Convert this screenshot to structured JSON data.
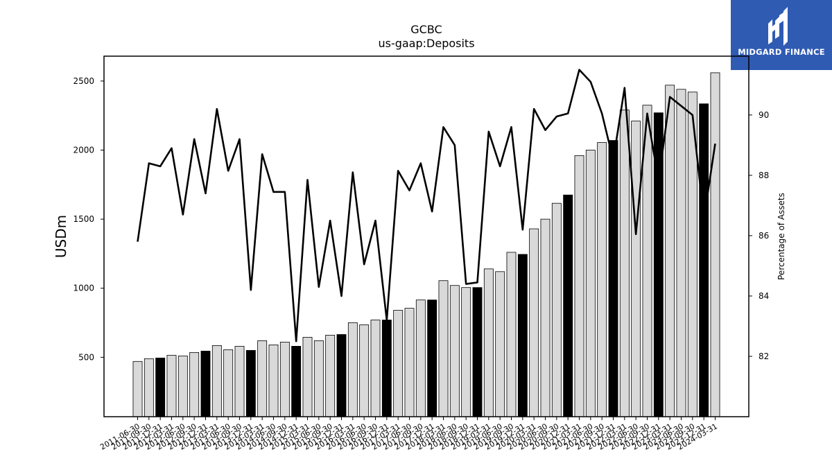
{
  "logo": {
    "text": "MIDGARD FINANCE"
  },
  "colors": {
    "bar_default": "#d9d9d9",
    "bar_highlight": "#000000",
    "line": "#000000",
    "logo_bg": "#2f5bb3"
  },
  "chart_data": {
    "type": "bar",
    "title": "GCBC",
    "subtitle": "us-gaap:Deposits",
    "ylabel": "USDm",
    "y2label": "Percentage of Assets",
    "ylim": [
      70,
      2680
    ],
    "y2lim": [
      80.0,
      91.95
    ],
    "yticks": [
      500,
      1000,
      1500,
      2000,
      2500
    ],
    "y2ticks": [
      82,
      84,
      86,
      88,
      90
    ],
    "categories": [
      "2011-06-30",
      "2011-09-30",
      "2011-12-31",
      "2012-03-31",
      "2012-06-30",
      "2012-09-30",
      "2012-12-31",
      "2013-03-31",
      "2013-06-30",
      "2013-09-30",
      "2013-12-31",
      "2014-03-31",
      "2014-06-30",
      "2014-09-30",
      "2014-12-31",
      "2015-03-31",
      "2015-06-30",
      "2015-09-30",
      "2015-12-31",
      "2016-03-31",
      "2016-06-30",
      "2016-09-30",
      "2016-12-31",
      "2017-03-31",
      "2017-06-30",
      "2017-09-30",
      "2017-12-31",
      "2018-03-31",
      "2018-06-30",
      "2018-09-30",
      "2018-12-31",
      "2019-03-31",
      "2019-06-30",
      "2019-09-30",
      "2019-12-31",
      "2020-03-31",
      "2020-06-30",
      "2020-09-30",
      "2020-12-31",
      "2021-03-31",
      "2021-06-30",
      "2021-09-30",
      "2021-12-31",
      "2022-03-31",
      "2022-06-30",
      "2022-09-30",
      "2022-12-31",
      "2023-03-31",
      "2023-06-30",
      "2023-09-30",
      "2023-12-31",
      "2024-03-31"
    ],
    "highlight": [
      false,
      false,
      true,
      false,
      false,
      false,
      true,
      false,
      false,
      false,
      true,
      false,
      false,
      false,
      true,
      false,
      false,
      false,
      true,
      false,
      false,
      false,
      true,
      false,
      false,
      false,
      true,
      false,
      false,
      false,
      true,
      false,
      false,
      false,
      true,
      false,
      false,
      false,
      true,
      false,
      false,
      false,
      true,
      false,
      false,
      false,
      true,
      false,
      false,
      false,
      true,
      false
    ],
    "series": [
      {
        "values": [
          470,
          490,
          495,
          515,
          510,
          535,
          545,
          585,
          555,
          580,
          550,
          620,
          590,
          610,
          580,
          645,
          620,
          660,
          665,
          750,
          735,
          770,
          770,
          840,
          855,
          915,
          915,
          1055,
          1020,
          1005,
          1005,
          1140,
          1120,
          1260,
          1245,
          1430,
          1500,
          1615,
          1675,
          1960,
          2000,
          2055,
          2070,
          2290,
          2210,
          2325,
          2270,
          2470,
          2440,
          2420,
          2335,
          2560
        ]
      },
      {
        "axis": "right",
        "type": "line",
        "values": [
          85.8,
          88.4,
          88.3,
          88.9,
          86.7,
          89.2,
          87.4,
          90.2,
          88.15,
          89.2,
          84.2,
          88.7,
          87.45,
          87.45,
          82.5,
          87.85,
          84.3,
          86.5,
          84.0,
          88.1,
          85.05,
          86.5,
          83.2,
          88.15,
          87.5,
          88.4,
          86.8,
          89.6,
          89.0,
          84.4,
          84.45,
          89.45,
          88.3,
          89.6,
          86.2,
          90.2,
          89.5,
          89.95,
          90.05,
          91.5,
          91.1,
          90.05,
          88.5,
          90.9,
          86.05,
          90.05,
          87.8,
          90.6,
          90.3,
          90.0,
          86.55,
          89.05
        ]
      }
    ]
  }
}
